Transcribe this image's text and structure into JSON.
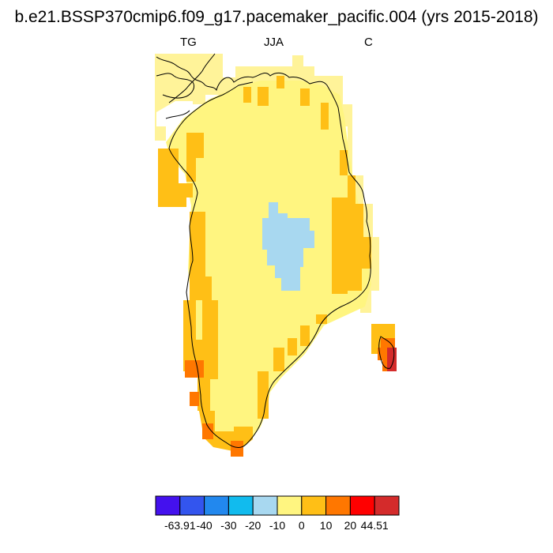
{
  "title": "b.e21.BSSP370cmip6.f09_g17.pacemaker_pacific.004 (yrs 2015-2018)",
  "subtitles": {
    "left": "TG",
    "center": "JJA",
    "right": "C"
  },
  "colorbar": {
    "colors": [
      "#4411ee",
      "#3355ee",
      "#2288ee",
      "#11bbee",
      "#a8d8f0",
      "#fff580",
      "#ffbf16",
      "#ff7700",
      "#ff0000",
      "#d42b2b"
    ],
    "labels": [
      "-63.91",
      "-40",
      "-30",
      "-20",
      "-10",
      "0",
      "10",
      "20",
      "44.51"
    ]
  },
  "legend_colors": {
    "interior": "#fff580",
    "cool_center": "#a8d8f0",
    "warm_margin": "#ffbf16",
    "hot_spots": "#ff7700",
    "hottest": "#d42b2b",
    "outer_cells": "#fff399"
  }
}
